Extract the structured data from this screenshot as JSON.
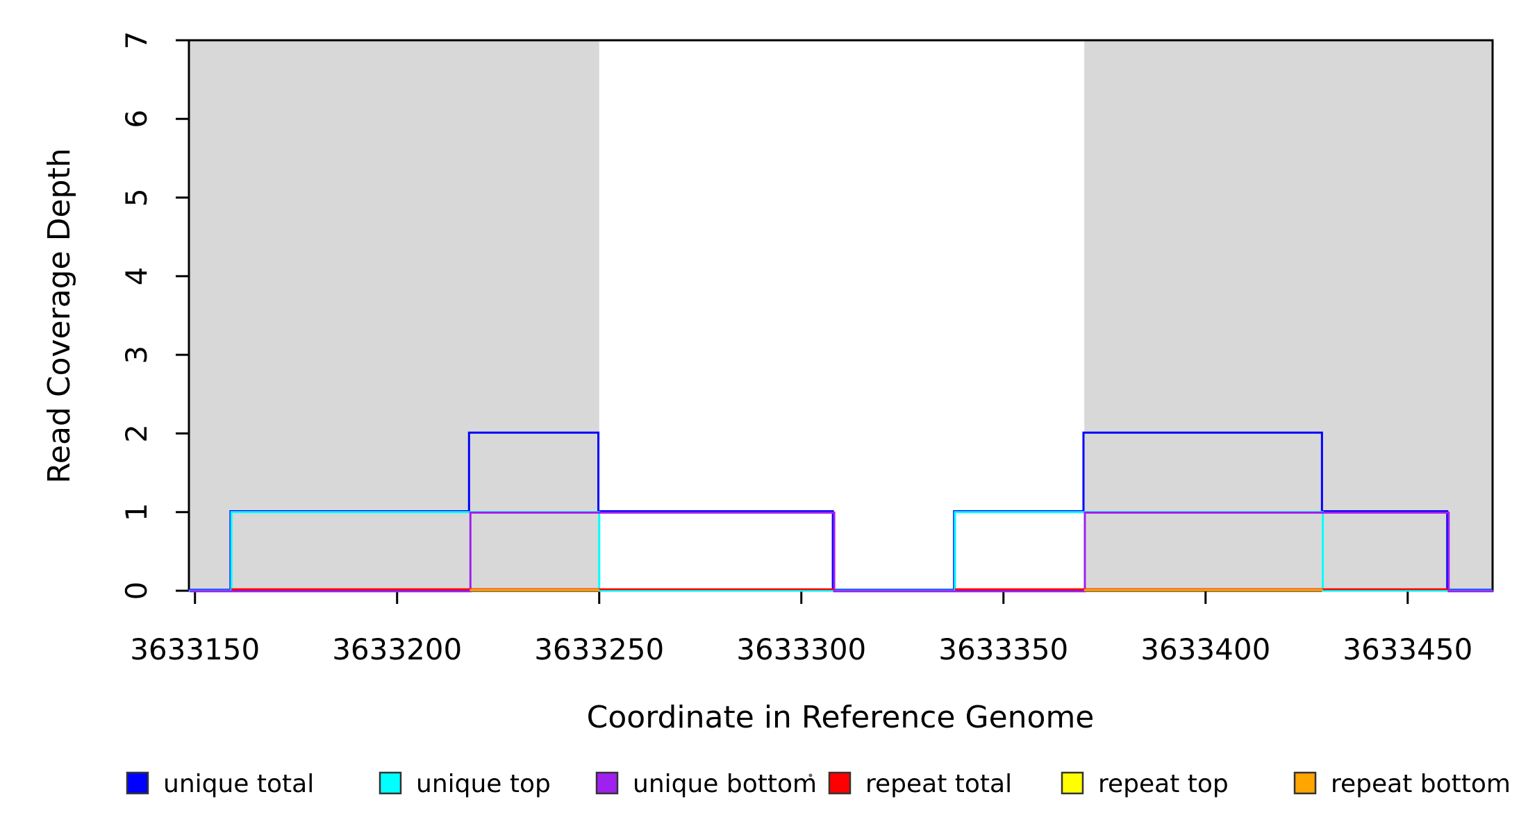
{
  "chart_data": {
    "type": "line",
    "subtype": "step-coverage",
    "title": "",
    "xlabel": "Coordinate in Reference Genome",
    "ylabel": "Read Coverage Depth",
    "xlim": [
      3633148.5,
      3633471.0
    ],
    "ylim": [
      0,
      7
    ],
    "x_ticks": [
      3633150,
      3633200,
      3633250,
      3633300,
      3633350,
      3633400,
      3633450
    ],
    "y_ticks": [
      0,
      1,
      2,
      3,
      4,
      5,
      6,
      7
    ],
    "grid": false,
    "colors": {
      "background": "#ffffff",
      "frame": "#000000",
      "highlight_region": "#d8d8d8",
      "tick_text": "#000000",
      "legend_text": "#111111",
      "legend_swatch_border": "#333333"
    },
    "highlight_regions": [
      {
        "start": 3633148.5,
        "end": 3633250
      },
      {
        "start": 3633370,
        "end": 3633471
      }
    ],
    "series": [
      {
        "name": "unique total",
        "color": "#0000ff",
        "kind": "step",
        "levels": [
          {
            "from": 3633148.5,
            "to": 3633159,
            "value": 0
          },
          {
            "from": 3633159,
            "to": 3633218,
            "value": 1
          },
          {
            "from": 3633218,
            "to": 3633250,
            "value": 2
          },
          {
            "from": 3633250,
            "to": 3633308,
            "value": 1
          },
          {
            "from": 3633308,
            "to": 3633338,
            "value": 0
          },
          {
            "from": 3633338,
            "to": 3633370,
            "value": 1
          },
          {
            "from": 3633370,
            "to": 3633429,
            "value": 2
          },
          {
            "from": 3633429,
            "to": 3633460,
            "value": 1
          },
          {
            "from": 3633460,
            "to": 3633471,
            "value": 0
          }
        ]
      },
      {
        "name": "unique top",
        "color": "#00ffff",
        "kind": "step",
        "levels": [
          {
            "from": 3633148.5,
            "to": 3633159,
            "value": 0
          },
          {
            "from": 3633159,
            "to": 3633250,
            "value": 1
          },
          {
            "from": 3633250,
            "to": 3633338,
            "value": 0
          },
          {
            "from": 3633338,
            "to": 3633429,
            "value": 1
          },
          {
            "from": 3633429,
            "to": 3633471,
            "value": 0
          }
        ]
      },
      {
        "name": "unique bottom",
        "color": "#a020f0",
        "kind": "step",
        "levels": [
          {
            "from": 3633148.5,
            "to": 3633218,
            "value": 0
          },
          {
            "from": 3633218,
            "to": 3633308,
            "value": 1
          },
          {
            "from": 3633308,
            "to": 3633370,
            "value": 0
          },
          {
            "from": 3633370,
            "to": 3633460,
            "value": 1
          },
          {
            "from": 3633460,
            "to": 3633471,
            "value": 0
          }
        ]
      },
      {
        "name": "repeat total",
        "color": "#ff0000",
        "kind": "baseline",
        "value": 0,
        "segments": [
          {
            "from": 3633159,
            "to": 3633308
          },
          {
            "from": 3633338,
            "to": 3633460
          }
        ]
      },
      {
        "name": "repeat top",
        "color": "#ffff00",
        "kind": "baseline",
        "value": 0,
        "segments": [
          {
            "from": 3633218,
            "to": 3633250
          },
          {
            "from": 3633370,
            "to": 3633429
          }
        ]
      },
      {
        "name": "repeat bottom",
        "color": "#ffa500",
        "kind": "baseline",
        "value": 0,
        "segments": [
          {
            "from": 3633218,
            "to": 3633250
          },
          {
            "from": 3633370,
            "to": 3633429
          }
        ]
      }
    ],
    "legend": {
      "position": "bottom",
      "items": [
        {
          "label": "unique total",
          "color": "#0000ff"
        },
        {
          "label": "unique top",
          "color": "#00ffff"
        },
        {
          "label": "unique bottom",
          "color": "#a020f0"
        },
        {
          "label": "repeat total",
          "color": "#ff0000"
        },
        {
          "label": "repeat top",
          "color": "#ffff00"
        },
        {
          "label": "repeat bottom",
          "color": "#ffa500"
        }
      ]
    }
  }
}
